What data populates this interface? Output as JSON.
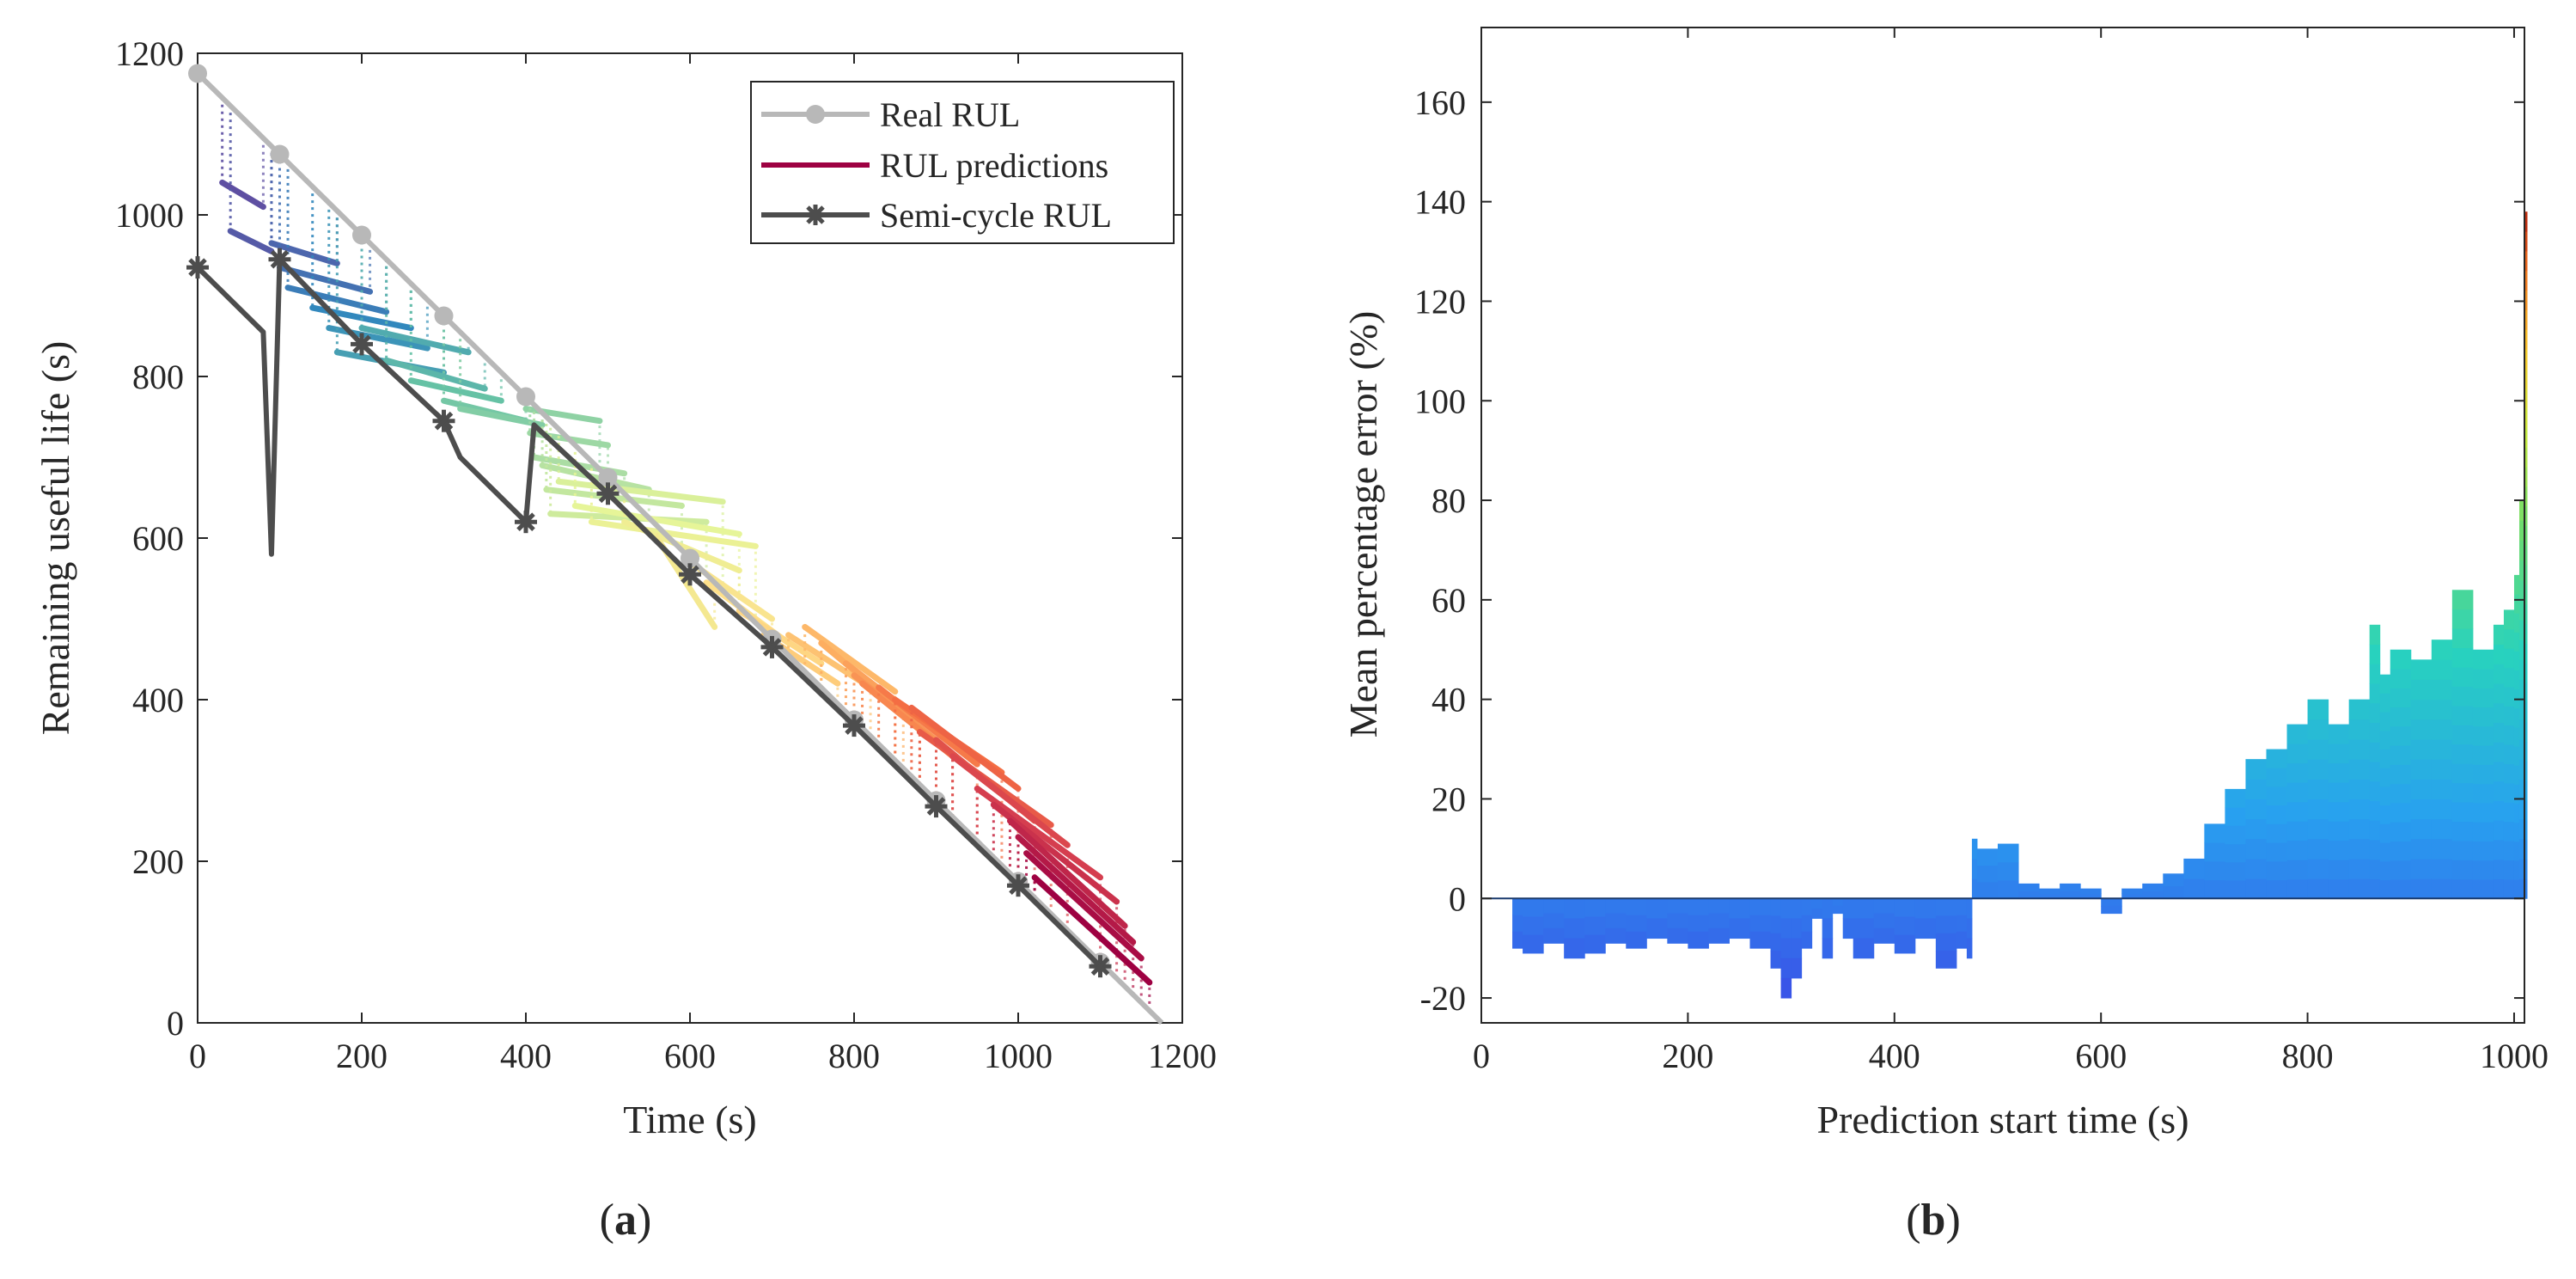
{
  "chart_data": [
    {
      "type": "line",
      "panel": "a",
      "panel_label": {
        "open": "(",
        "letter": "a",
        "close": ")"
      },
      "xlabel": "Time (s)",
      "ylabel": "Remaining useful life (s)",
      "xlim": [
        0,
        1200
      ],
      "ylim": [
        0,
        1200
      ],
      "xticks": [
        0,
        200,
        400,
        600,
        800,
        1000,
        1200
      ],
      "yticks": [
        0,
        200,
        400,
        600,
        800,
        1000,
        1200
      ],
      "grid": false,
      "legend": {
        "position": "top-right",
        "entries": [
          {
            "label": "Real RUL",
            "color": "#b8b8b8",
            "marker": "circle"
          },
          {
            "label": "RUL predictions",
            "color": "#9e0142",
            "marker": "none"
          },
          {
            "label": "Semi-cycle RUL",
            "color": "#4d4d4d",
            "marker": "asterisk"
          }
        ]
      },
      "series": [
        {
          "name": "Real RUL",
          "color": "#b8b8b8",
          "x": [
            0,
            100,
            200,
            300,
            400,
            500,
            600,
            700,
            800,
            900,
            1000,
            1100,
            1175
          ],
          "y": [
            1175,
            1075,
            975,
            875,
            775,
            675,
            575,
            475,
            375,
            275,
            175,
            75,
            0
          ],
          "marker_x": [
            0,
            100,
            200,
            300,
            400,
            500,
            600,
            700,
            800,
            900,
            1000,
            1100
          ],
          "marker_y": [
            1175,
            1075,
            975,
            875,
            775,
            675,
            575,
            475,
            375,
            275,
            175,
            75
          ]
        },
        {
          "name": "Semi-cycle RUL",
          "color": "#4d4d4d",
          "x": [
            0,
            80,
            90,
            100,
            200,
            300,
            320,
            400,
            410,
            500,
            600,
            700,
            800,
            900,
            1000,
            1100
          ],
          "y": [
            935,
            855,
            580,
            945,
            840,
            745,
            700,
            620,
            740,
            655,
            555,
            465,
            368,
            268,
            170,
            70
          ],
          "marker_x": [
            0,
            100,
            200,
            300,
            400,
            500,
            600,
            700,
            800,
            900,
            1000,
            1100
          ],
          "marker_y": [
            935,
            945,
            840,
            745,
            620,
            655,
            555,
            465,
            368,
            268,
            170,
            70
          ]
        }
      ],
      "prediction_lines": [
        {
          "x0": 30,
          "y0": 1040,
          "x1": 80,
          "y1": 1010
        },
        {
          "x0": 40,
          "y0": 980,
          "x1": 90,
          "y1": 955
        },
        {
          "x0": 90,
          "y0": 965,
          "x1": 170,
          "y1": 940
        },
        {
          "x0": 100,
          "y0": 935,
          "x1": 210,
          "y1": 905
        },
        {
          "x0": 110,
          "y0": 910,
          "x1": 230,
          "y1": 880
        },
        {
          "x0": 140,
          "y0": 885,
          "x1": 260,
          "y1": 860
        },
        {
          "x0": 160,
          "y0": 860,
          "x1": 280,
          "y1": 835
        },
        {
          "x0": 170,
          "y0": 830,
          "x1": 300,
          "y1": 805
        },
        {
          "x0": 200,
          "y0": 860,
          "x1": 330,
          "y1": 830
        },
        {
          "x0": 230,
          "y0": 820,
          "x1": 350,
          "y1": 785
        },
        {
          "x0": 260,
          "y0": 795,
          "x1": 370,
          "y1": 770
        },
        {
          "x0": 300,
          "y0": 770,
          "x1": 400,
          "y1": 745
        },
        {
          "x0": 320,
          "y0": 760,
          "x1": 420,
          "y1": 740
        },
        {
          "x0": 400,
          "y0": 760,
          "x1": 490,
          "y1": 745
        },
        {
          "x0": 405,
          "y0": 730,
          "x1": 500,
          "y1": 715
        },
        {
          "x0": 410,
          "y0": 700,
          "x1": 520,
          "y1": 680
        },
        {
          "x0": 420,
          "y0": 690,
          "x1": 550,
          "y1": 660
        },
        {
          "x0": 425,
          "y0": 660,
          "x1": 590,
          "y1": 640
        },
        {
          "x0": 430,
          "y0": 630,
          "x1": 620,
          "y1": 620
        },
        {
          "x0": 440,
          "y0": 670,
          "x1": 640,
          "y1": 645
        },
        {
          "x0": 460,
          "y0": 640,
          "x1": 660,
          "y1": 605
        },
        {
          "x0": 480,
          "y0": 620,
          "x1": 680,
          "y1": 590
        },
        {
          "x0": 520,
          "y0": 620,
          "x1": 660,
          "y1": 560
        },
        {
          "x0": 560,
          "y0": 600,
          "x1": 630,
          "y1": 490
        },
        {
          "x0": 600,
          "y0": 570,
          "x1": 700,
          "y1": 500
        },
        {
          "x0": 620,
          "y0": 545,
          "x1": 720,
          "y1": 470
        },
        {
          "x0": 660,
          "y0": 510,
          "x1": 760,
          "y1": 445
        },
        {
          "x0": 690,
          "y0": 480,
          "x1": 780,
          "y1": 420
        },
        {
          "x0": 720,
          "y0": 480,
          "x1": 820,
          "y1": 415
        },
        {
          "x0": 740,
          "y0": 490,
          "x1": 850,
          "y1": 410
        },
        {
          "x0": 760,
          "y0": 470,
          "x1": 860,
          "y1": 385
        },
        {
          "x0": 790,
          "y0": 445,
          "x1": 880,
          "y1": 375
        },
        {
          "x0": 800,
          "y0": 430,
          "x1": 900,
          "y1": 350
        },
        {
          "x0": 810,
          "y0": 420,
          "x1": 920,
          "y1": 330
        },
        {
          "x0": 830,
          "y0": 415,
          "x1": 950,
          "y1": 320
        },
        {
          "x0": 850,
          "y0": 400,
          "x1": 980,
          "y1": 310
        },
        {
          "x0": 870,
          "y0": 390,
          "x1": 1000,
          "y1": 290
        },
        {
          "x0": 880,
          "y0": 360,
          "x1": 1040,
          "y1": 245
        },
        {
          "x0": 900,
          "y0": 350,
          "x1": 1020,
          "y1": 250
        },
        {
          "x0": 920,
          "y0": 330,
          "x1": 1060,
          "y1": 220
        },
        {
          "x0": 950,
          "y0": 290,
          "x1": 1100,
          "y1": 180
        },
        {
          "x0": 970,
          "y0": 270,
          "x1": 1120,
          "y1": 150
        },
        {
          "x0": 990,
          "y0": 250,
          "x1": 1130,
          "y1": 120
        },
        {
          "x0": 1000,
          "y0": 230,
          "x1": 1140,
          "y1": 100
        },
        {
          "x0": 1010,
          "y0": 210,
          "x1": 1150,
          "y1": 80
        },
        {
          "x0": 1020,
          "y0": 180,
          "x1": 1160,
          "y1": 50
        }
      ]
    },
    {
      "type": "bar",
      "panel": "b",
      "panel_label": {
        "open": "(",
        "letter": "b",
        "close": ")"
      },
      "xlabel": "Prediction start time (s)",
      "ylabel": "Mean percentage error (%)",
      "xlim": [
        0,
        1010
      ],
      "ylim": [
        -25,
        175
      ],
      "xticks": [
        0,
        200,
        400,
        600,
        800,
        1000
      ],
      "yticks": [
        -20,
        0,
        20,
        40,
        60,
        80,
        100,
        120,
        140,
        160
      ],
      "grid": false,
      "colormap": "spectral-reversed",
      "x": [
        30,
        40,
        60,
        80,
        100,
        120,
        140,
        160,
        180,
        200,
        220,
        240,
        260,
        280,
        290,
        300,
        310,
        320,
        330,
        340,
        350,
        360,
        380,
        400,
        420,
        440,
        460,
        470,
        475,
        480,
        500,
        520,
        540,
        560,
        580,
        600,
        620,
        640,
        660,
        680,
        700,
        720,
        740,
        760,
        780,
        800,
        820,
        840,
        860,
        870,
        880,
        900,
        920,
        940,
        960,
        980,
        990,
        1000,
        1005,
        1010
      ],
      "values": [
        -10,
        -11,
        -9,
        -12,
        -11,
        -9,
        -10,
        -8,
        -9,
        -10,
        -9,
        -8,
        -10,
        -14,
        -20,
        -16,
        -10,
        -4,
        -12,
        -3,
        -8,
        -12,
        -9,
        -11,
        -8,
        -14,
        -10,
        -12,
        12,
        10,
        11,
        3,
        2,
        3,
        2,
        -3,
        2,
        3,
        5,
        8,
        15,
        22,
        28,
        30,
        35,
        40,
        35,
        40,
        55,
        45,
        50,
        48,
        52,
        62,
        50,
        55,
        58,
        65,
        80,
        138
      ]
    }
  ]
}
